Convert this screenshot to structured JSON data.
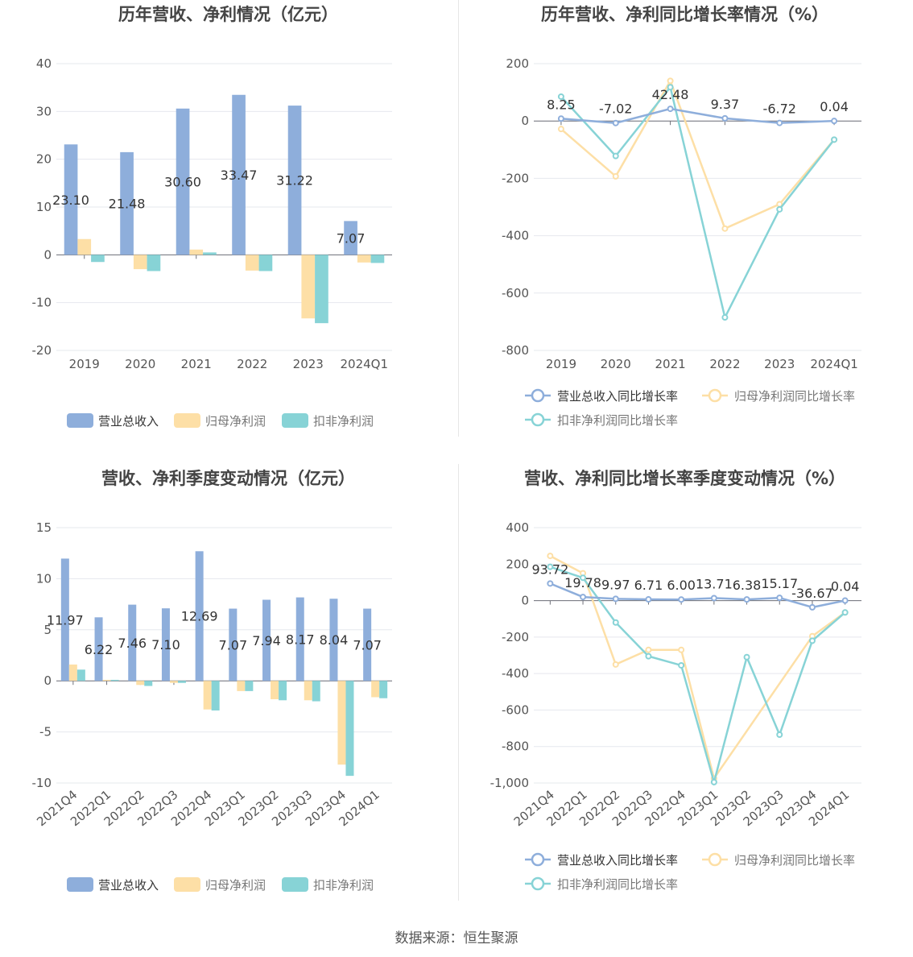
{
  "source": "数据来源：恒生聚源",
  "colors": {
    "revenue": "#8eaedb",
    "net": "#fddfa6",
    "deducted": "#87d3d6",
    "grid": "#e6e8ee",
    "axis": "#555555",
    "label": "#333333"
  },
  "chart_data": [
    {
      "type": "bar",
      "title": "历年营收、净利情况（亿元）",
      "categories": [
        "2019",
        "2020",
        "2021",
        "2022",
        "2023",
        "2024Q1"
      ],
      "ylim": [
        -20,
        40
      ],
      "yticks": [
        -20,
        -10,
        0,
        10,
        20,
        30,
        40
      ],
      "series": [
        {
          "name": "营业总收入",
          "values": [
            23.1,
            21.48,
            30.6,
            33.47,
            31.22,
            7.07
          ]
        },
        {
          "name": "归母净利润",
          "values": [
            3.3,
            -3.0,
            1.1,
            -3.3,
            -13.3,
            -1.6
          ]
        },
        {
          "name": "扣非净利润",
          "values": [
            -1.5,
            -3.4,
            0.5,
            -3.4,
            -14.3,
            -1.7
          ]
        }
      ],
      "data_labels": [
        "23.10",
        "21.48",
        "30.60",
        "33.47",
        "31.22",
        "7.07"
      ],
      "legend": "bottom",
      "grid": true
    },
    {
      "type": "line",
      "title": "历年营收、净利同比增长率情况（%）",
      "categories": [
        "2019",
        "2020",
        "2021",
        "2022",
        "2023",
        "2024Q1"
      ],
      "ylim": [
        -800,
        200
      ],
      "yticks": [
        -800,
        -600,
        -400,
        -200,
        0,
        200
      ],
      "series": [
        {
          "name": "营业总收入同比增长率",
          "values": [
            8.25,
            -7.02,
            42.48,
            9.37,
            -6.72,
            0.04
          ]
        },
        {
          "name": "归母净利润同比增长率",
          "values": [
            -28,
            -193,
            140,
            -375,
            -290,
            -65
          ]
        },
        {
          "name": "扣非净利润同比增长率",
          "values": [
            85,
            -122,
            118,
            -685,
            -308,
            -65
          ]
        }
      ],
      "data_labels": [
        "8.25",
        "-7.02",
        "42.48",
        "9.37",
        "-6.72",
        "0.04"
      ],
      "legend": "bottom",
      "grid": true
    },
    {
      "type": "bar",
      "title": "营收、净利季度变动情况（亿元）",
      "categories": [
        "2021Q4",
        "2022Q1",
        "2022Q2",
        "2022Q3",
        "2022Q4",
        "2023Q1",
        "2023Q2",
        "2023Q3",
        "2023Q4",
        "2024Q1"
      ],
      "ylim": [
        -10,
        15
      ],
      "yticks": [
        -10,
        -5,
        0,
        5,
        10,
        15
      ],
      "series": [
        {
          "name": "营业总收入",
          "values": [
            11.97,
            6.22,
            7.46,
            7.1,
            12.69,
            7.07,
            7.94,
            8.17,
            8.04,
            7.07
          ]
        },
        {
          "name": "归母净利润",
          "values": [
            1.6,
            0.1,
            -0.4,
            -0.2,
            -2.8,
            -1.0,
            -1.8,
            -1.9,
            -8.2,
            -1.6
          ]
        },
        {
          "name": "扣非净利润",
          "values": [
            1.1,
            0.1,
            -0.5,
            -0.2,
            -2.9,
            -1.0,
            -1.9,
            -2.0,
            -9.3,
            -1.7
          ]
        }
      ],
      "data_labels": [
        "11.97",
        "6.22",
        "7.46",
        "7.10",
        "12.69",
        "7.07",
        "7.94",
        "8.17",
        "8.04",
        "7.07"
      ],
      "legend": "bottom",
      "grid": true
    },
    {
      "type": "line",
      "title": "营收、净利同比增长率季度变动情况（%）",
      "categories": [
        "2021Q4",
        "2022Q1",
        "2022Q2",
        "2022Q3",
        "2022Q4",
        "2023Q1",
        "2023Q2",
        "2023Q3",
        "2023Q4",
        "2024Q1"
      ],
      "ylim": [
        -1000,
        400
      ],
      "yticks": [
        -1000,
        -800,
        -600,
        -400,
        -200,
        0,
        200,
        400
      ],
      "ytick_labels": [
        "-1,000",
        "-800",
        "-600",
        "-400",
        "-200",
        "0",
        "200",
        "400"
      ],
      "series": [
        {
          "name": "营业总收入同比增长率",
          "values": [
            93.72,
            19.78,
            9.97,
            6.71,
            6.0,
            13.71,
            6.38,
            15.17,
            -36.67,
            0.04
          ]
        },
        {
          "name": "归母净利润同比增长率",
          "values": [
            245,
            150,
            -350,
            -270,
            -270,
            -975,
            null,
            null,
            -195,
            -65
          ]
        },
        {
          "name": "扣非净利润同比增长率",
          "values": [
            185,
            125,
            -120,
            -305,
            -355,
            -995,
            -310,
            -735,
            -220,
            -65
          ]
        }
      ],
      "data_labels": [
        "93.72",
        "19.78",
        "9.97",
        "6.71",
        "6.00",
        "13.71",
        "6.38",
        "15.17",
        "-36.67",
        "0.04"
      ],
      "legend": "bottom",
      "grid": true
    }
  ]
}
